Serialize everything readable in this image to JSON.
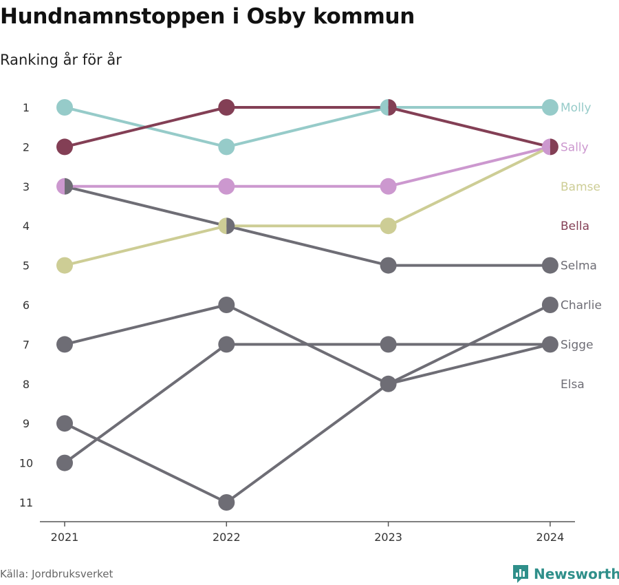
{
  "title": "Hundnamnstoppen i Osby kommun",
  "subtitle": "Ranking år för år",
  "source": "Källa: Jordbruksverket",
  "brand": "Newsworthy",
  "colors": {
    "brand": "#2f8f8a",
    "axis": "#555555",
    "other": "#6e6d75"
  },
  "chart_data": {
    "type": "line",
    "x": [
      "2021",
      "2022",
      "2023",
      "2024"
    ],
    "y_ticks": [
      1,
      2,
      3,
      4,
      5,
      6,
      7,
      8,
      9,
      10,
      11
    ],
    "ylim": [
      1,
      11
    ],
    "y_inverted": true,
    "grid": false,
    "series": [
      {
        "name": "Molly",
        "color": "#96cbc9",
        "values": [
          1,
          2,
          1,
          1
        ]
      },
      {
        "name": "Sally",
        "color": "#cc98cf",
        "values": [
          3,
          3,
          3,
          2
        ]
      },
      {
        "name": "Bamse",
        "color": "#cdcd95",
        "values": [
          5,
          4,
          4,
          2
        ]
      },
      {
        "name": "Bella",
        "color": "#833f55",
        "values": [
          2,
          1,
          1,
          2
        ]
      },
      {
        "name": "Selma",
        "color": "#6e6d75",
        "values": [
          3,
          4,
          5,
          5
        ]
      },
      {
        "name": "Charlie",
        "color": "#6e6d75",
        "values": [
          7,
          6,
          8,
          6
        ]
      },
      {
        "name": "Sigge",
        "color": "#6e6d75",
        "values": [
          10,
          7,
          7,
          7
        ]
      },
      {
        "name": "Elsa",
        "color": "#6e6d75",
        "values": [
          9,
          11,
          8,
          7
        ]
      }
    ],
    "end_labels": [
      {
        "name": "Molly",
        "rank": 1
      },
      {
        "name": "Sally",
        "rank": 2
      },
      {
        "name": "Bamse",
        "rank": 3
      },
      {
        "name": "Bella",
        "rank": 4
      },
      {
        "name": "Selma",
        "rank": 5
      },
      {
        "name": "Charlie",
        "rank": 6
      },
      {
        "name": "Sigge",
        "rank": 7
      },
      {
        "name": "Elsa",
        "rank": 8
      }
    ]
  }
}
